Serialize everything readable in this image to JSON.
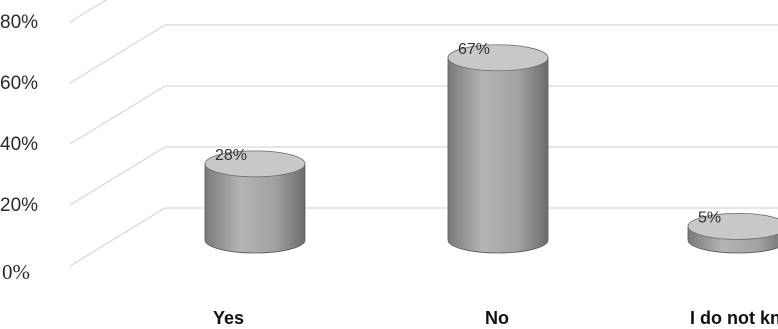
{
  "chart_data": {
    "type": "bar",
    "style": "3d-cylinder",
    "categories": [
      "Yes",
      "No",
      "I do not know"
    ],
    "values": [
      28,
      67,
      5
    ],
    "data_labels": [
      "28%",
      "67%",
      "5%"
    ],
    "y_ticks": [
      "0%",
      "20%",
      "40%",
      "60%",
      "80%"
    ],
    "y_tick_values": [
      0,
      20,
      40,
      60,
      80
    ],
    "ylim": [
      0,
      80
    ],
    "grid": true,
    "legend": "none",
    "colors": {
      "bar": "#a9a9a9",
      "bar_dark": "#6f6f6f",
      "bar_top": "#c8c8c8",
      "grid": "#d6d6d6"
    }
  }
}
